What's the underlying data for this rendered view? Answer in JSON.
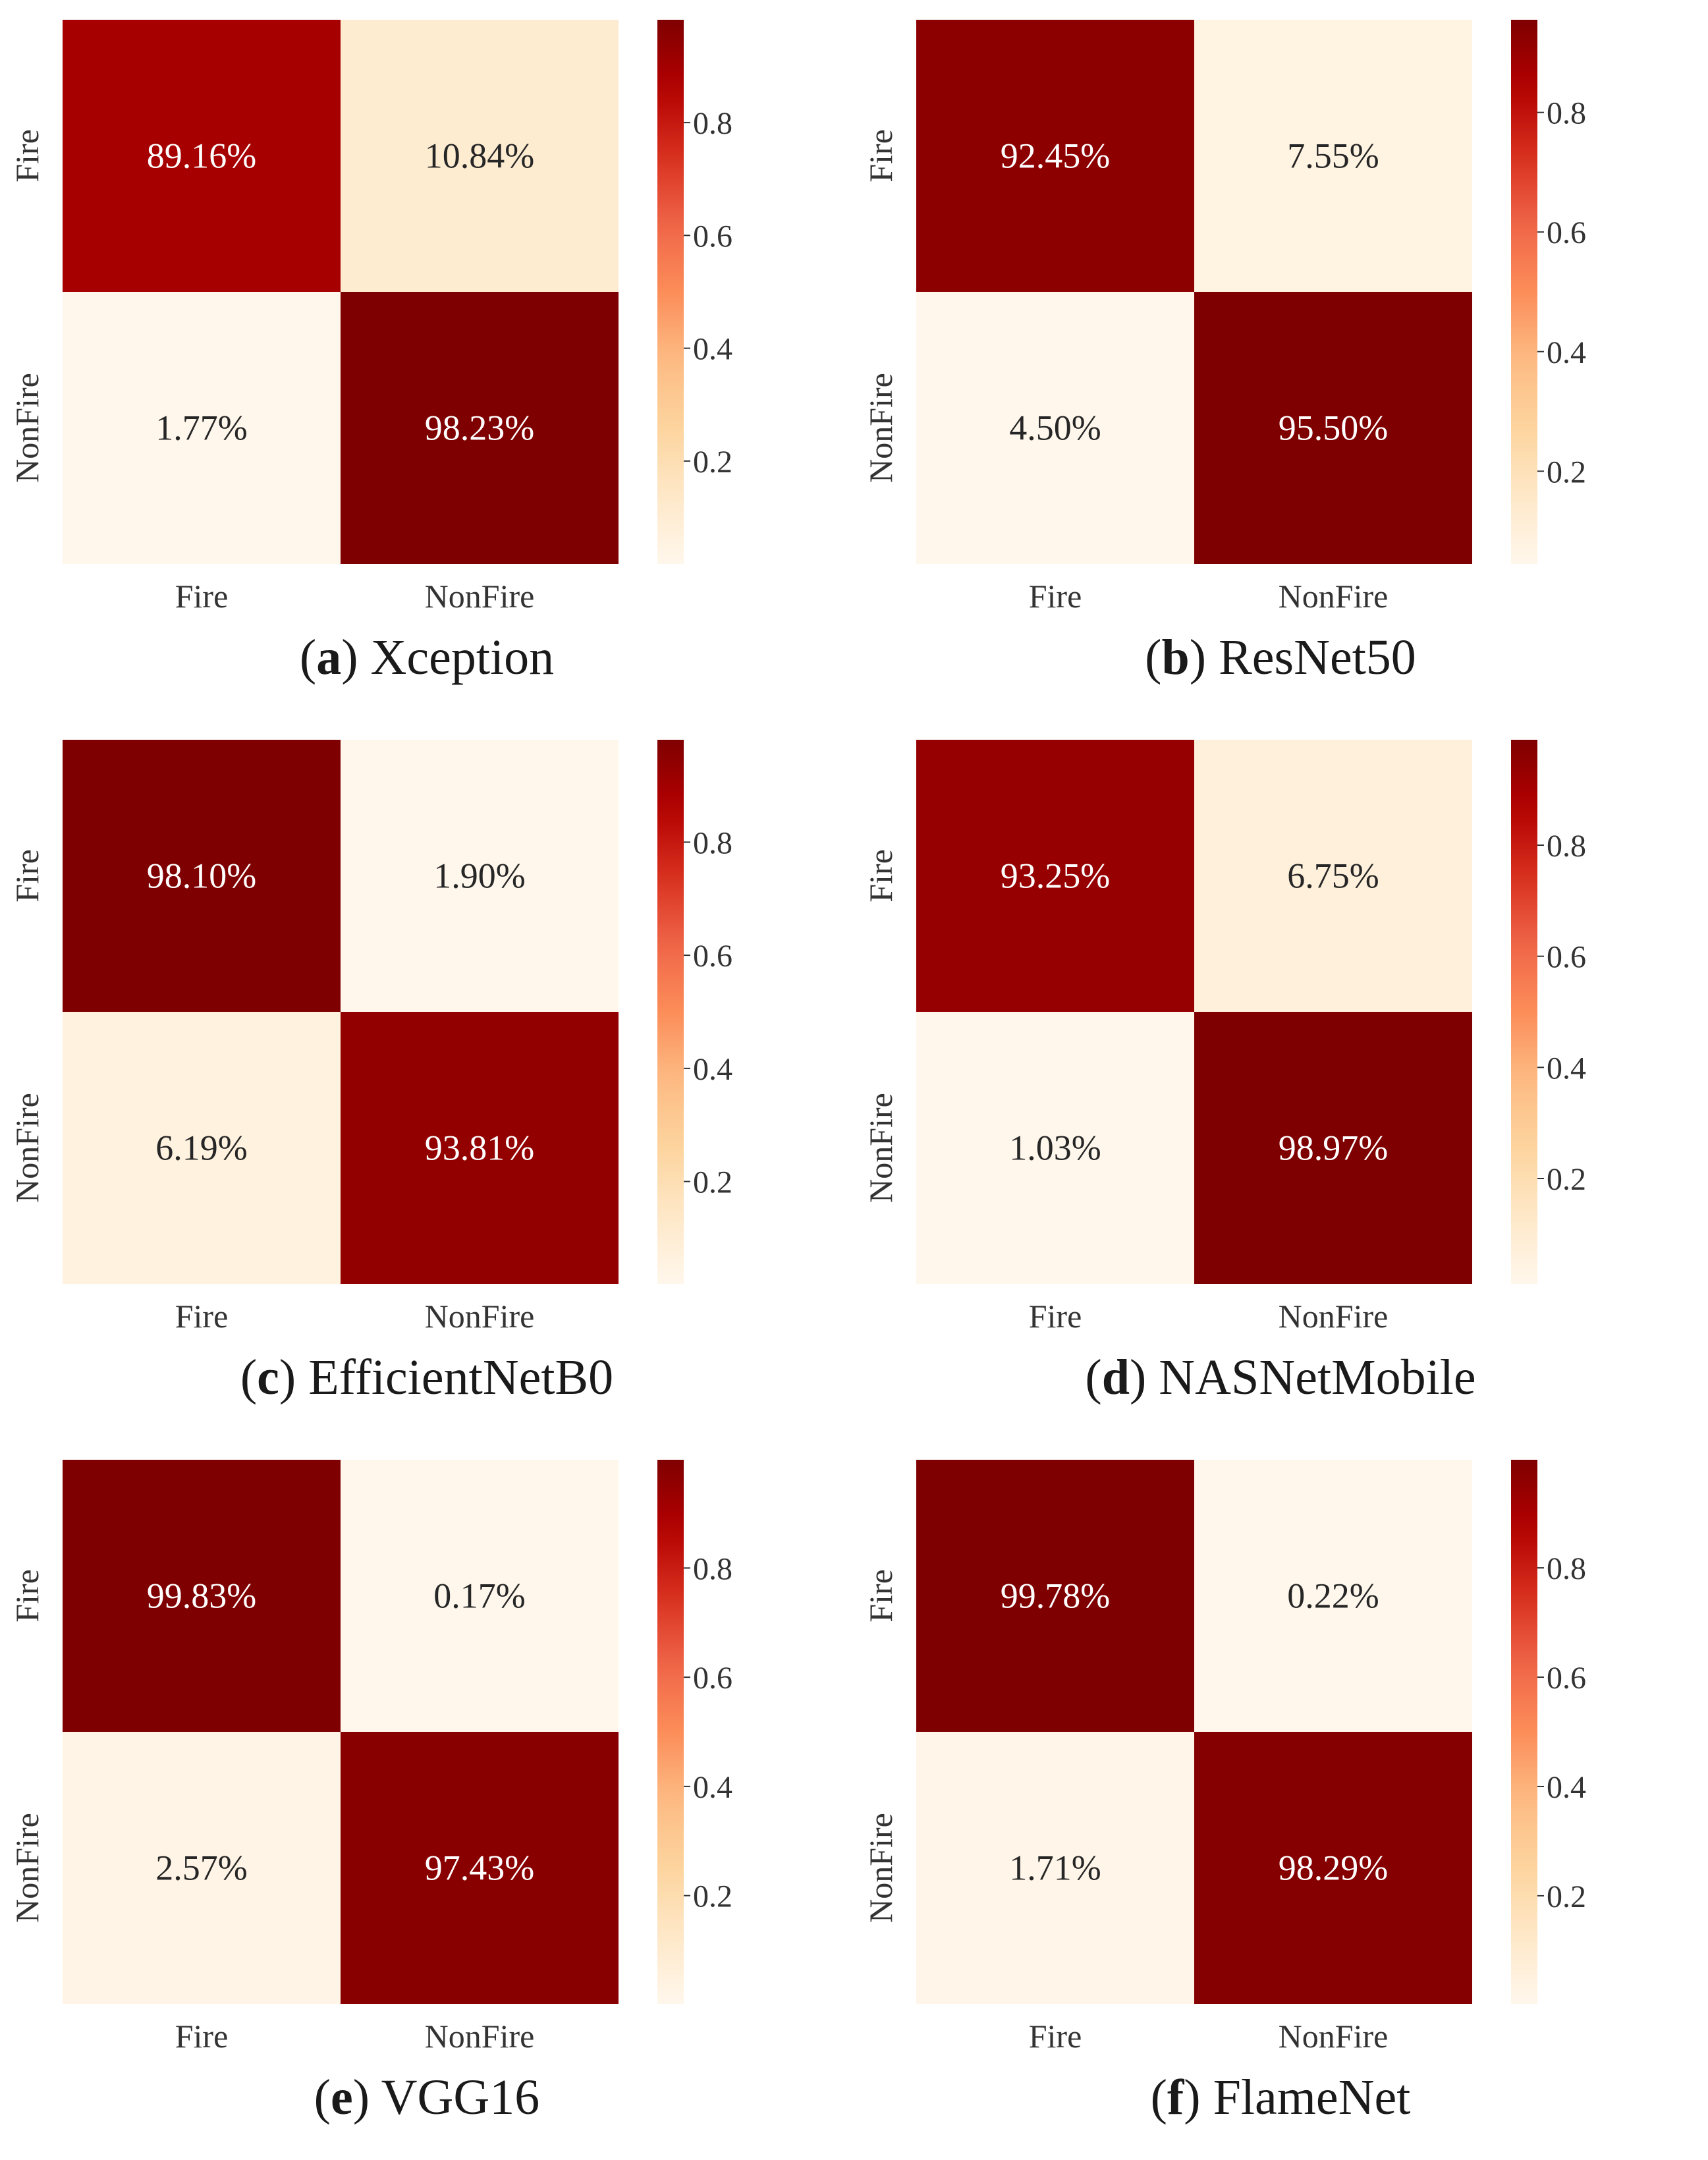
{
  "colors": {
    "colormap": "OrRd",
    "stops": [
      "#fff7ec",
      "#fee8c8",
      "#fdd49e",
      "#fdbb84",
      "#fc8d59",
      "#ef6548",
      "#d7301f",
      "#b30000",
      "#7f0000"
    ],
    "text_dark": "#262626",
    "text_light": "#ffffff"
  },
  "chart_data": [
    {
      "type": "heatmap",
      "panel_letter": "a",
      "caption": "Xception",
      "rows": [
        "Fire",
        "NonFire"
      ],
      "columns": [
        "Fire",
        "NonFire"
      ],
      "values": [
        [
          0.8916,
          0.1084
        ],
        [
          0.0177,
          0.9823
        ]
      ],
      "labels": [
        [
          "89.16%",
          "10.84%"
        ],
        [
          "1.77%",
          "98.23%"
        ]
      ],
      "colorbar": {
        "ticks": [
          0.2,
          0.4,
          0.6,
          0.8
        ],
        "range": [
          0.0177,
          0.9823
        ]
      }
    },
    {
      "type": "heatmap",
      "panel_letter": "b",
      "caption": "ResNet50",
      "rows": [
        "Fire",
        "NonFire"
      ],
      "columns": [
        "Fire",
        "NonFire"
      ],
      "values": [
        [
          0.9245,
          0.0755
        ],
        [
          0.045,
          0.955
        ]
      ],
      "labels": [
        [
          "92.45%",
          "7.55%"
        ],
        [
          "4.50%",
          "95.50%"
        ]
      ],
      "colorbar": {
        "ticks": [
          0.2,
          0.4,
          0.6,
          0.8
        ],
        "range": [
          0.045,
          0.955
        ]
      }
    },
    {
      "type": "heatmap",
      "panel_letter": "c",
      "caption": "EfficientNetB0",
      "rows": [
        "Fire",
        "NonFire"
      ],
      "columns": [
        "Fire",
        "NonFire"
      ],
      "values": [
        [
          0.981,
          0.019
        ],
        [
          0.0619,
          0.9381
        ]
      ],
      "labels": [
        [
          "98.10%",
          "1.90%"
        ],
        [
          "6.19%",
          "93.81%"
        ]
      ],
      "colorbar": {
        "ticks": [
          0.2,
          0.4,
          0.6,
          0.8
        ],
        "range": [
          0.019,
          0.981
        ]
      }
    },
    {
      "type": "heatmap",
      "panel_letter": "d",
      "caption": "NASNetMobile",
      "rows": [
        "Fire",
        "NonFire"
      ],
      "columns": [
        "Fire",
        "NonFire"
      ],
      "values": [
        [
          0.9325,
          0.0675
        ],
        [
          0.0103,
          0.9897
        ]
      ],
      "labels": [
        [
          "93.25%",
          "6.75%"
        ],
        [
          "1.03%",
          "98.97%"
        ]
      ],
      "colorbar": {
        "ticks": [
          0.2,
          0.4,
          0.6,
          0.8
        ],
        "range": [
          0.0103,
          0.9897
        ]
      }
    },
    {
      "type": "heatmap",
      "panel_letter": "e",
      "caption": "VGG16",
      "rows": [
        "Fire",
        "NonFire"
      ],
      "columns": [
        "Fire",
        "NonFire"
      ],
      "values": [
        [
          0.9983,
          0.0017
        ],
        [
          0.0257,
          0.9743
        ]
      ],
      "labels": [
        [
          "99.83%",
          "0.17%"
        ],
        [
          "2.57%",
          "97.43%"
        ]
      ],
      "colorbar": {
        "ticks": [
          0.2,
          0.4,
          0.6,
          0.8
        ],
        "range": [
          0.0017,
          0.9983
        ]
      }
    },
    {
      "type": "heatmap",
      "panel_letter": "f",
      "caption": "FlameNet",
      "rows": [
        "Fire",
        "NonFire"
      ],
      "columns": [
        "Fire",
        "NonFire"
      ],
      "values": [
        [
          0.9978,
          0.0022
        ],
        [
          0.0171,
          0.9829
        ]
      ],
      "labels": [
        [
          "99.78%",
          "0.22%"
        ],
        [
          "1.71%",
          "98.29%"
        ]
      ],
      "colorbar": {
        "ticks": [
          0.2,
          0.4,
          0.6,
          0.8
        ],
        "range": [
          0.0022,
          0.9978
        ]
      }
    }
  ]
}
